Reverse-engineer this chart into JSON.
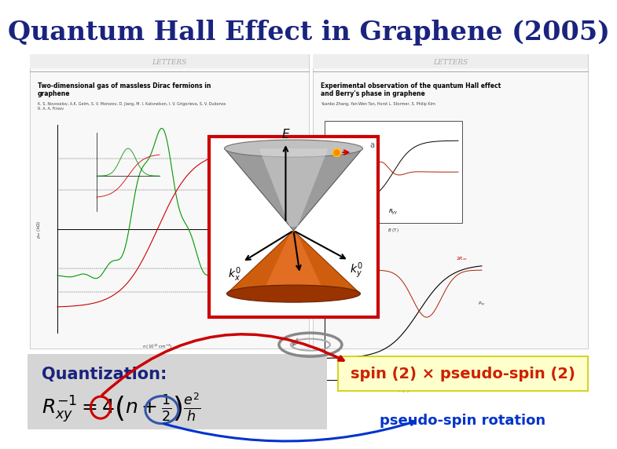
{
  "title": "Quantum Hall Effect in Graphene (2005)",
  "title_color": "#1a237e",
  "title_fontsize": 24,
  "background_color": "#ffffff",
  "quantization_label": "Quantization:",
  "quantization_color": "#1a237e",
  "formula_color": "#000000",
  "spin_text": "spin (2) × pseudo-spin (2)",
  "spin_color": "#cc2200",
  "pseudospin_text": "pseudo-spin rotation",
  "pseudospin_color": "#0033cc",
  "red_circle_color": "#cc0000",
  "blue_circle_color": "#3355aa",
  "paper1_title": "Two-dimensional gas of massless Dirac fermions in\ngraphene",
  "paper2_title": "Experimental observation of the quantum Hall effect\nand Berry's phase in graphene",
  "paper1_authors": "K. S. Novoselov, A.K. Geim, S. V. Morozov, D. Jiang, M. I. Katsnelson, I. V. Grigorieva, S. V. Dubonos\nR. A. A. Firsov",
  "paper2_authors": "Yuanbo Zhang, Yan-Wen Tan, Horst L. Stormer, S. Philip Kim"
}
